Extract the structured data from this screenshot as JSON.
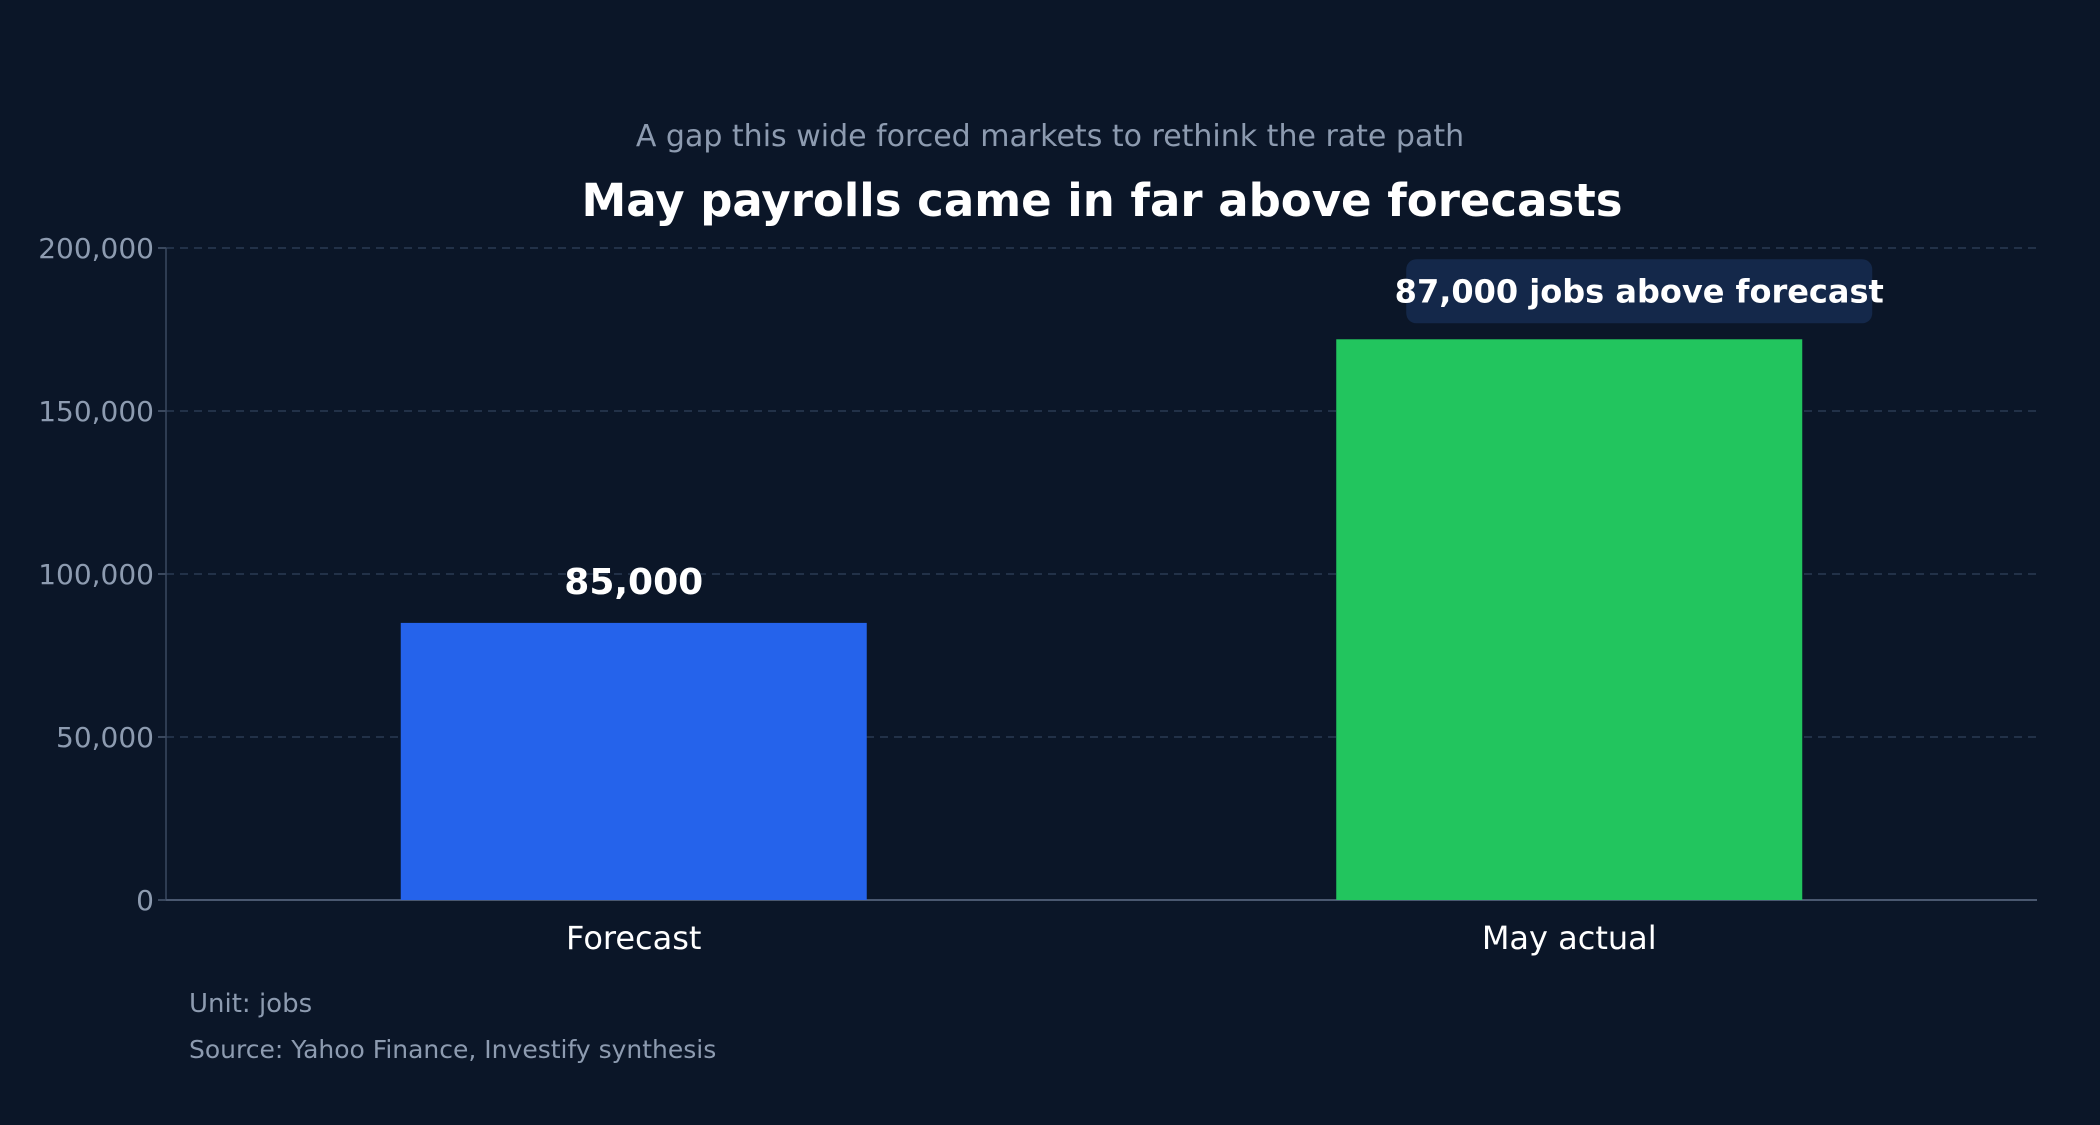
{
  "chart_data": {
    "type": "bar",
    "title": "May payrolls came in far above forecasts",
    "subtitle": "A gap this wide forced markets to rethink the rate path",
    "categories": [
      "Forecast",
      "May actual"
    ],
    "values": [
      85000,
      172000
    ],
    "value_labels": [
      "85,000",
      ""
    ],
    "colors": [
      "#2563eb",
      "#22c55e"
    ],
    "ylim": [
      0,
      200000
    ],
    "yticks": [
      0,
      50000,
      100000,
      150000,
      200000
    ],
    "ytick_labels": [
      "0",
      "50,000",
      "100,000",
      "150,000",
      "200,000"
    ],
    "grid": true,
    "annotation": {
      "text": "87,000 jobs above forecast",
      "category": "May actual",
      "background": "#14284a"
    },
    "unit_note": "Unit: jobs",
    "source": "Source: Yahoo Finance, Investify synthesis"
  }
}
